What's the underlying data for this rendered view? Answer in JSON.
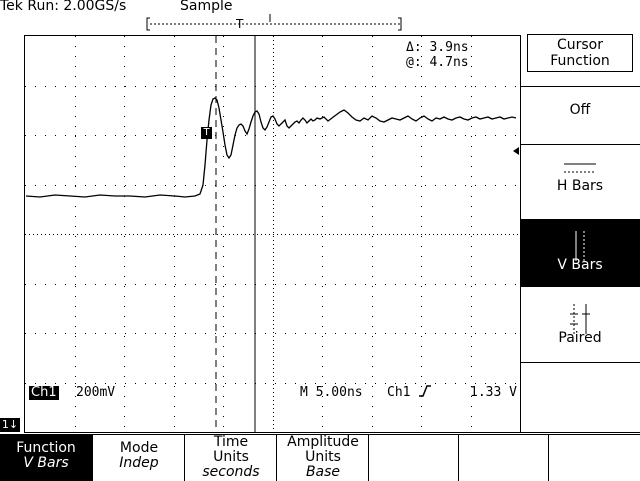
{
  "status": {
    "run_label": "Tek Run: 2.00GS/s",
    "acq_mode": "Sample"
  },
  "cursor_readouts": {
    "delta": "Δ: 3.9ns",
    "at": "@: 4.7ns"
  },
  "channel": {
    "badge": "Ch1",
    "scale": "200mV",
    "timebase": "M 5.00ns",
    "trigger_source": "Ch1",
    "trigger_slope_icon": "rising-edge-icon",
    "trigger_level": "1.33 V",
    "ref_marker": "T",
    "ground_badge": "1↓"
  },
  "side_menu": {
    "title": "Cursor Function",
    "items": [
      {
        "label": "Off",
        "icon": "none",
        "selected": false
      },
      {
        "label": "H Bars",
        "icon": "h-bars-icon",
        "selected": false
      },
      {
        "label": "V Bars",
        "icon": "v-bars-icon",
        "selected": true
      },
      {
        "label": "Paired",
        "icon": "paired-icon",
        "selected": false
      }
    ]
  },
  "bottom_menu": [
    {
      "label": "Function",
      "sub": "V Bars",
      "selected": true
    },
    {
      "label": "Mode",
      "sub": "Indep",
      "selected": false
    },
    {
      "label": "Time Units",
      "sub": "seconds",
      "selected": false
    },
    {
      "label": "Amplitude Units",
      "sub": "Base",
      "selected": false
    },
    {
      "label": "",
      "sub": "",
      "selected": false
    },
    {
      "label": "",
      "sub": "",
      "selected": false
    },
    {
      "label": "",
      "sub": "",
      "selected": false
    }
  ],
  "colors": {
    "foreground": "#000000",
    "background": "#ffffff"
  }
}
